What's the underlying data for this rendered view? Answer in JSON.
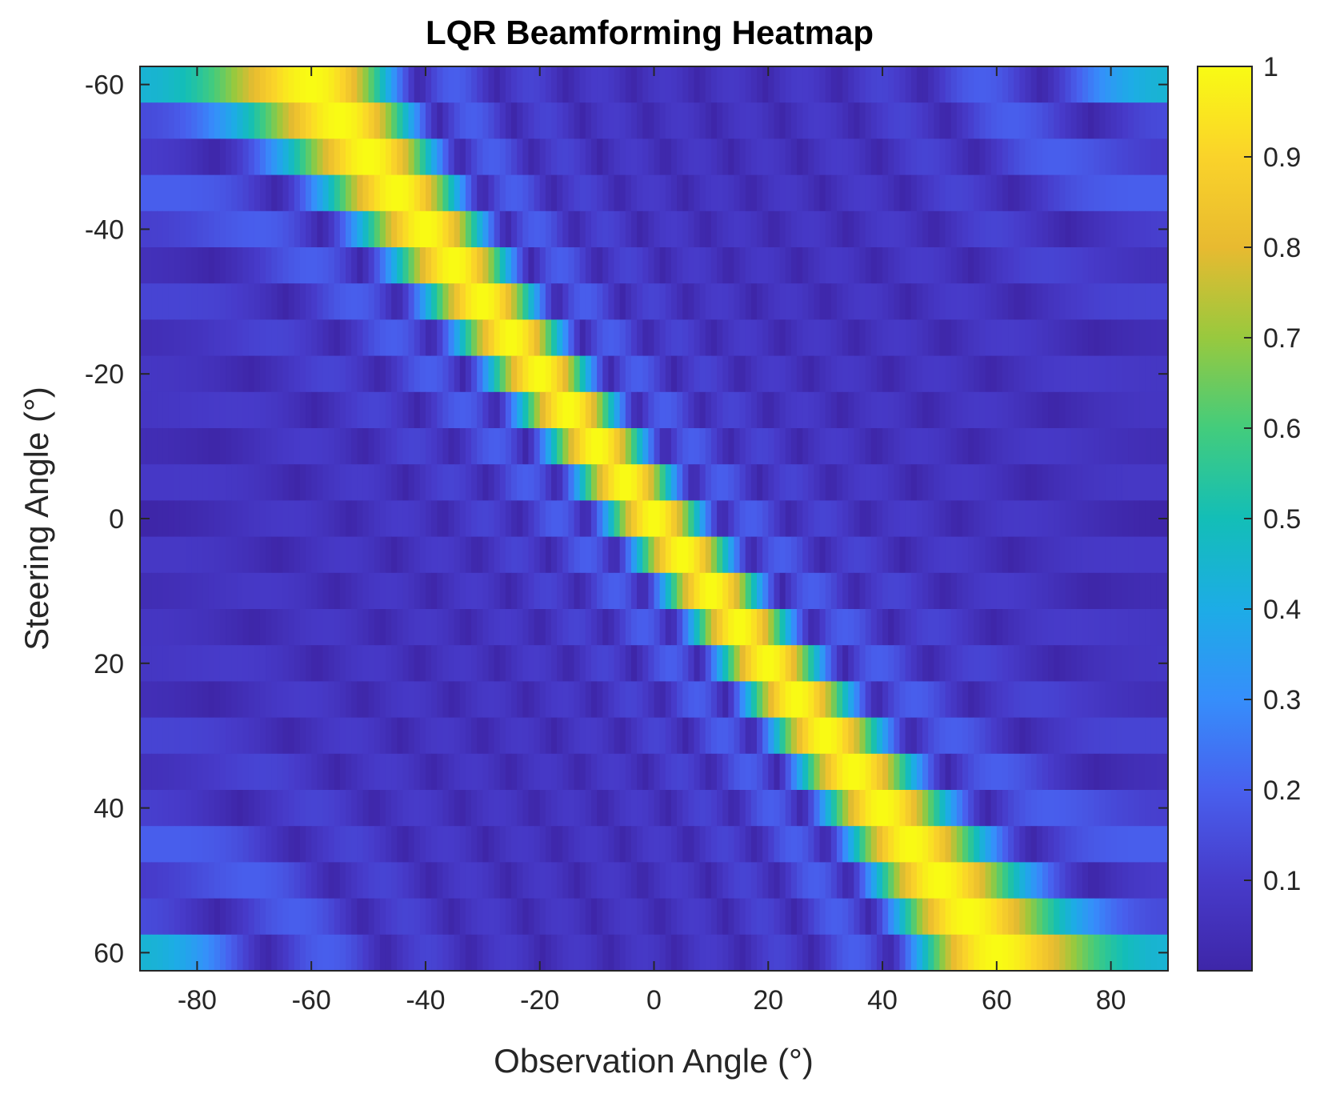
{
  "chart_data": {
    "type": "heatmap",
    "title": "LQR Beamforming Heatmap",
    "xlabel": "Observation Angle (°)",
    "ylabel": "Steering Angle (°)",
    "xlim": [
      -90,
      90
    ],
    "ylim": [
      -62.5,
      62.5
    ],
    "y_direction": "reversed",
    "x_ticks": [
      -80,
      -60,
      -40,
      -20,
      0,
      20,
      40,
      60,
      80
    ],
    "y_ticks": [
      -60,
      -40,
      -20,
      0,
      20,
      40,
      60
    ],
    "x_step": 1,
    "steering_angles": [
      -60,
      -55,
      -50,
      -45,
      -40,
      -35,
      -30,
      -25,
      -20,
      -15,
      -10,
      -5,
      0,
      5,
      10,
      15,
      20,
      25,
      30,
      35,
      40,
      45,
      50,
      55,
      60
    ],
    "peak_value": 1,
    "sidelobe_level_approx": 0.15,
    "colorbar": {
      "colormap": "parula",
      "clim": [
        0,
        1
      ],
      "ticks": [
        0.1,
        0.2,
        0.3,
        0.4,
        0.5,
        0.6,
        0.7,
        0.8,
        0.9,
        1
      ],
      "tick_labels": [
        "0.1",
        "0.2",
        "0.3",
        "0.4",
        "0.5",
        "0.6",
        "0.7",
        "0.8",
        "0.9",
        "1"
      ]
    },
    "grid": false
  }
}
